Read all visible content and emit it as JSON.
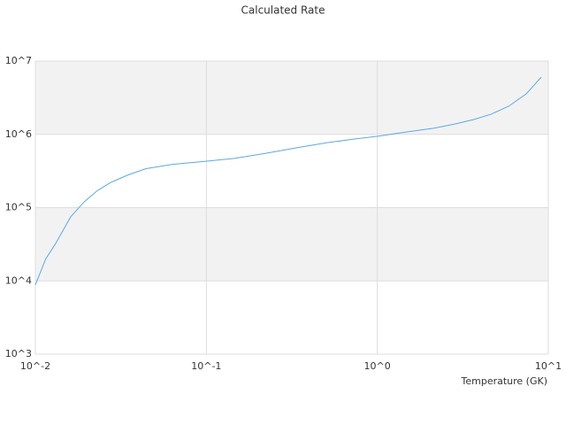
{
  "chart_data": {
    "type": "line",
    "title": "Calculated Rate",
    "x_label": "Temperature (GK)",
    "x": [
      0.01,
      0.0115,
      0.0131,
      0.0161,
      0.0193,
      0.023,
      0.0275,
      0.0349,
      0.0443,
      0.0634,
      0.0996,
      0.146,
      0.221,
      0.356,
      0.509,
      0.728,
      0.993,
      1.49,
      2.13,
      2.87,
      3.64,
      4.62,
      5.86,
      7.43,
      9.1
    ],
    "series": [
      {
        "color": "#5aa9e6",
        "values": [
          8800,
          20000,
          32000,
          75000,
          120000,
          170000,
          220000,
          280000,
          340000,
          390000,
          430000,
          470000,
          550000,
          670000,
          770000,
          860000,
          940000,
          1080000,
          1210000,
          1390000,
          1590000,
          1880000,
          2420000,
          3570000,
          6050000
        ]
      }
    ],
    "xlog": true,
    "ylog": true,
    "xlim": [
      0.01,
      10
    ],
    "ylim": [
      1000,
      10000000
    ],
    "xticks": [
      {
        "value": 0.01,
        "label": "10^-2"
      },
      {
        "value": 0.1,
        "label": "10^-1"
      },
      {
        "value": 1,
        "label": "10^0"
      },
      {
        "value": 10,
        "label": "10^1"
      }
    ],
    "yticks": [
      {
        "value": 1000,
        "label": "10^3"
      },
      {
        "value": 10000,
        "label": "10^4"
      },
      {
        "value": 100000,
        "label": "10^5"
      },
      {
        "value": 1000000,
        "label": "10^6"
      },
      {
        "value": 10000000,
        "label": "10^7"
      }
    ],
    "grid": true,
    "band_color": "#f2f2f2"
  }
}
